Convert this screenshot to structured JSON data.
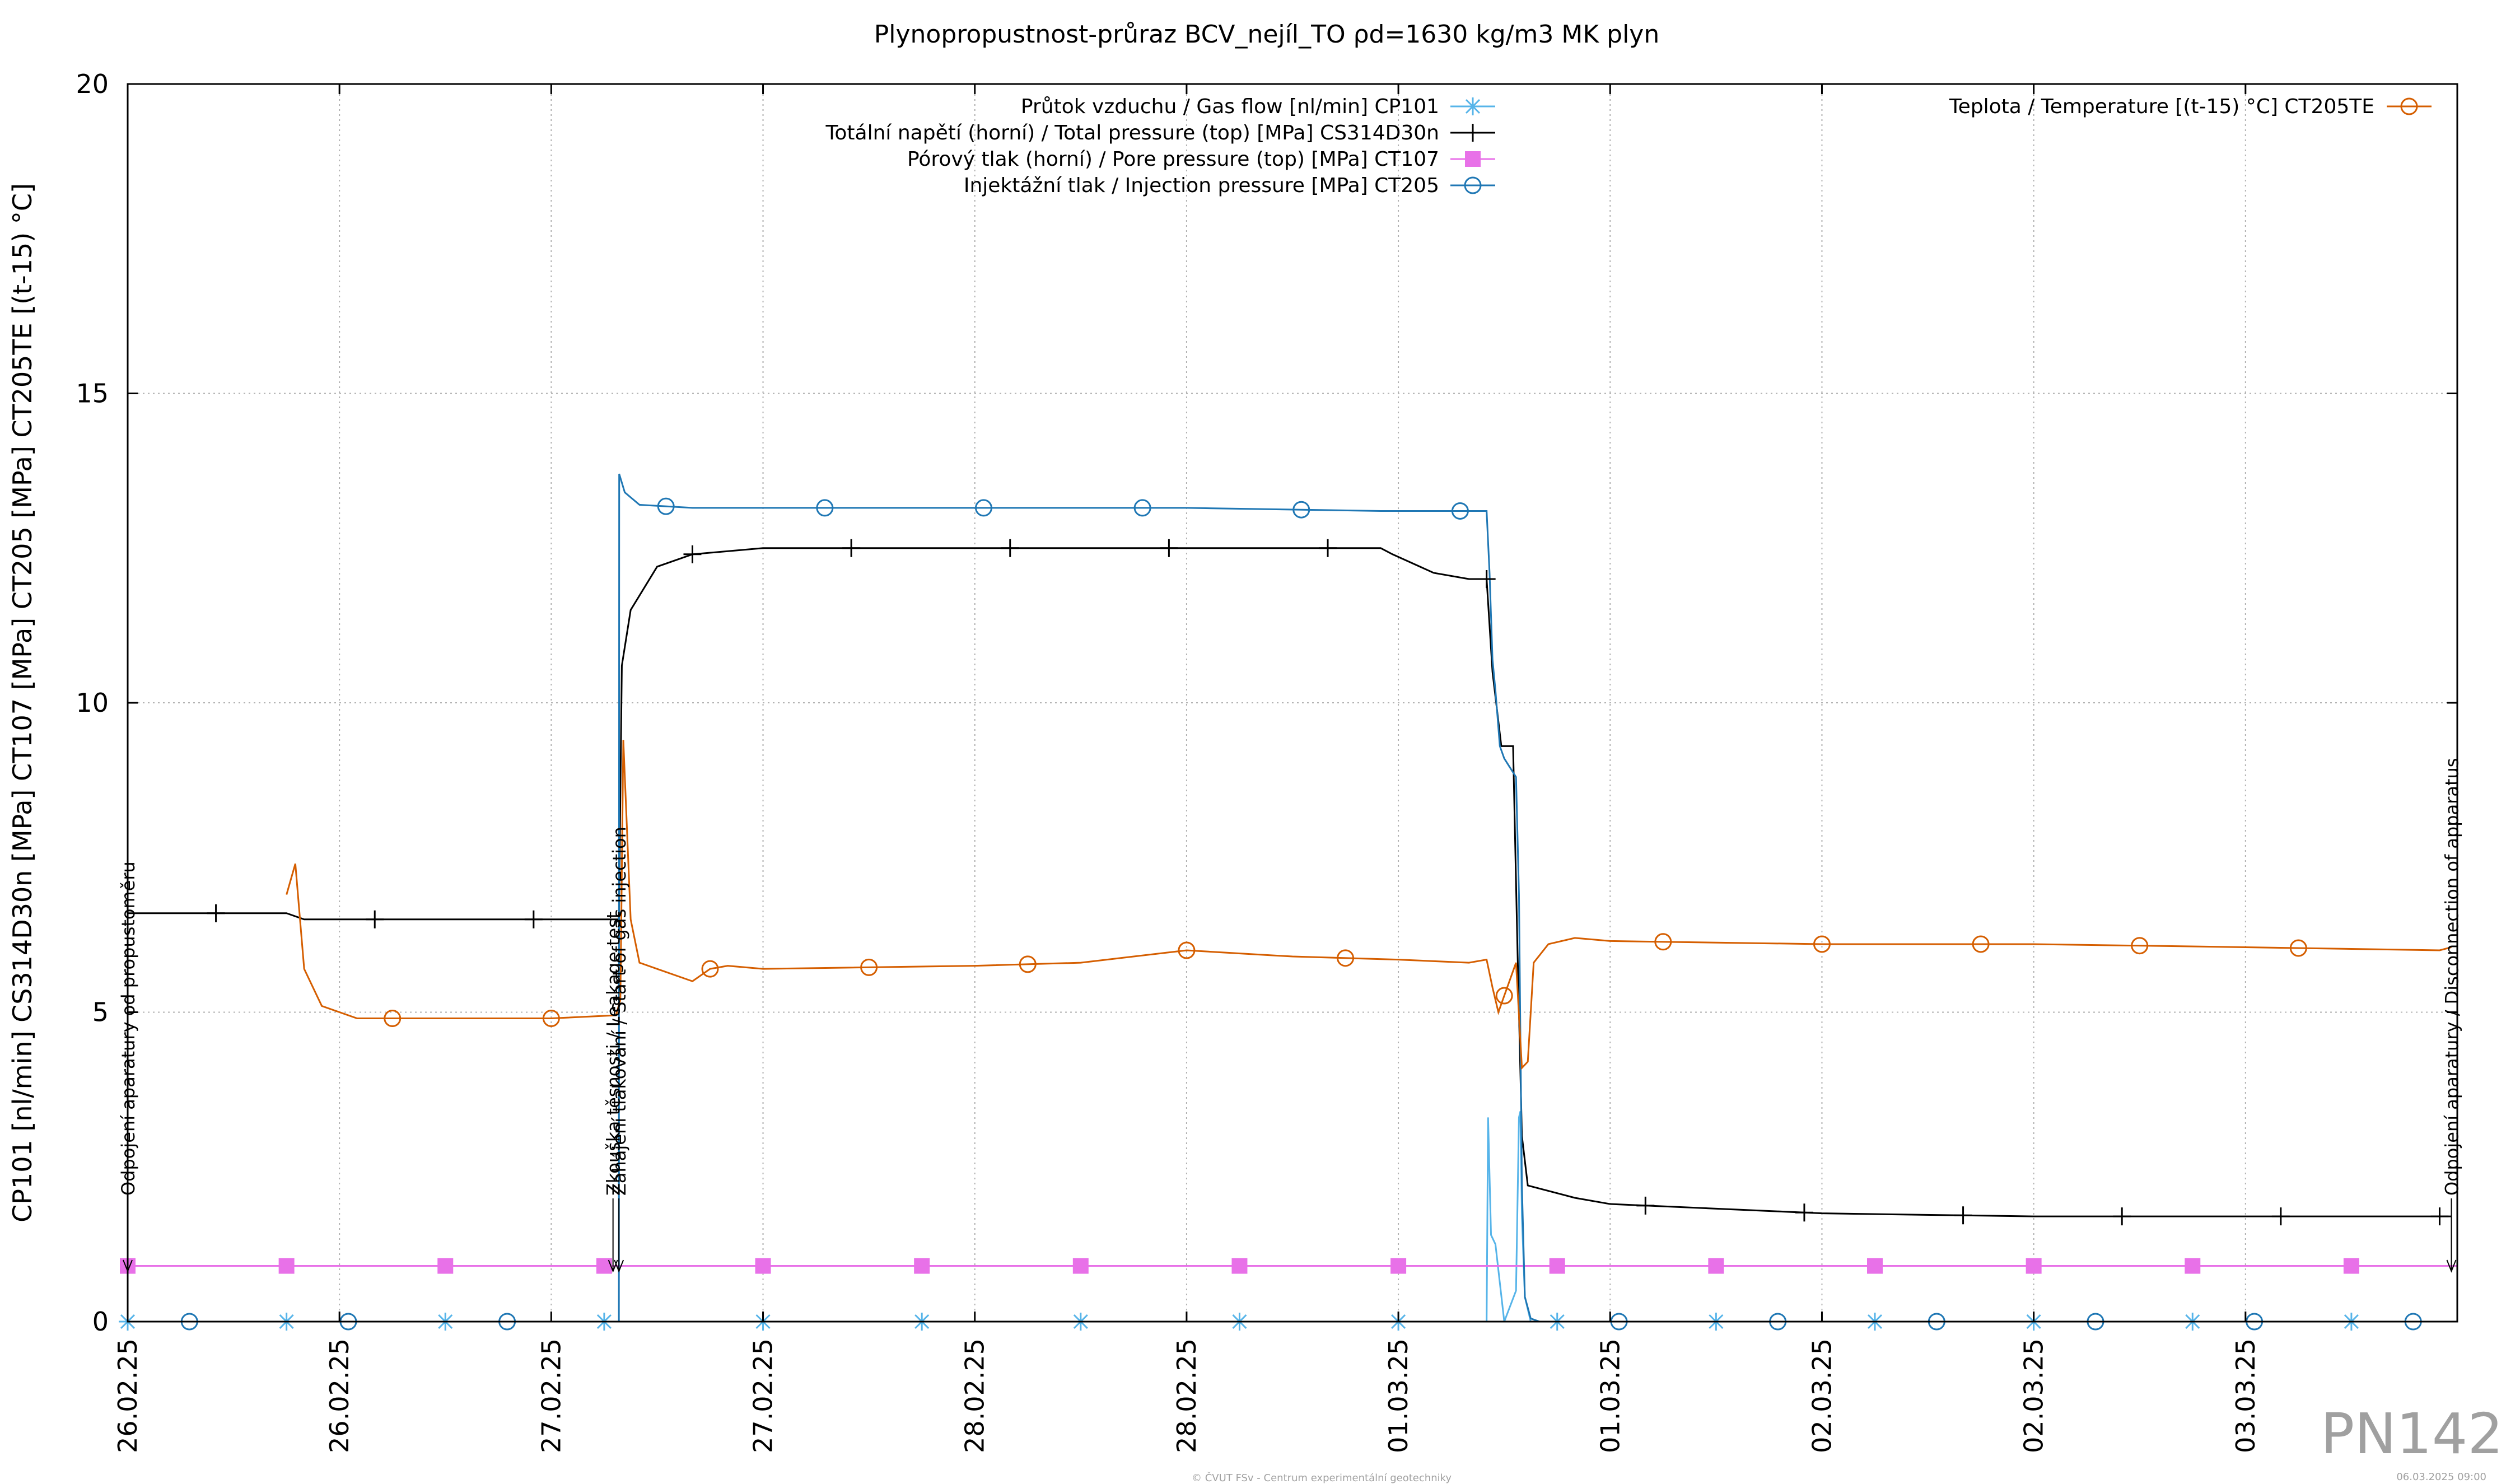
{
  "chart_data": {
    "type": "line",
    "title": "Plynopropustnost-průraz BCV_nejíl_TO ρd=1630 kg/m3 MK plyn",
    "ylabel": "CP101 [nl/min] CS314D30n [MPa] CT107 [MPa] CT205 [MPa] CT205TE [(t-15) °C]",
    "xlabel": "",
    "xlim": [
      "2025-02-26 00:00",
      "2025-03-03 12:00"
    ],
    "ylim": [
      0,
      20
    ],
    "grid": true,
    "legend_position": "top",
    "x_tick_labels": [
      "26.02.25",
      "26.02.25",
      "27.02.25",
      "27.02.25",
      "28.02.25",
      "28.02.25",
      "01.03.25",
      "01.03.25",
      "02.03.25",
      "02.03.25",
      "03.03.25"
    ],
    "x_ticks": [
      "2025-02-26 00:00",
      "2025-02-26 12:00",
      "2025-02-27 00:00",
      "2025-02-27 12:00",
      "2025-02-28 00:00",
      "2025-02-28 12:00",
      "2025-03-01 00:00",
      "2025-03-01 12:00",
      "2025-03-02 00:00",
      "2025-03-02 12:00",
      "2025-03-03 00:00"
    ],
    "y_ticks": [
      0,
      5,
      10,
      15,
      20
    ],
    "series": [
      {
        "name": "Průtok vzduchu / Gas flow [nl/min] CP101",
        "color": "#56b4e9",
        "marker": "asterisk",
        "x": [
          "2025-02-26 00:00",
          "2025-02-27 03:50",
          "2025-02-27 03:51",
          "2025-03-01 05:00",
          "2025-03-01 05:05",
          "2025-03-01 05:15",
          "2025-03-01 05:30",
          "2025-03-01 06:00",
          "2025-03-01 06:40",
          "2025-03-01 06:50",
          "2025-03-01 06:55",
          "2025-03-01 07:00",
          "2025-03-01 07:10",
          "2025-03-01 07:30",
          "2025-03-03 12:00"
        ],
        "y": [
          0,
          0,
          0,
          0,
          3.3,
          1.4,
          1.25,
          0,
          0.5,
          3.3,
          3.4,
          1.7,
          0.4,
          0,
          0
        ]
      },
      {
        "name": "Totální napětí (horní) / Total pressure (top) [MPa] CS314D30n",
        "color": "#000000",
        "marker": "plus",
        "x": [
          "2025-02-26 00:00",
          "2025-02-26 09:00",
          "2025-02-26 10:00",
          "2025-02-26 18:00",
          "2025-02-27 00:00",
          "2025-02-27 03:50",
          "2025-02-27 04:00",
          "2025-02-27 04:30",
          "2025-02-27 06:00",
          "2025-02-27 08:00",
          "2025-02-27 12:00",
          "2025-02-28 00:00",
          "2025-02-28 12:00",
          "2025-02-28 23:00",
          "2025-02-28 23:40",
          "2025-03-01 02:00",
          "2025-03-01 04:00",
          "2025-03-01 05:00",
          "2025-03-01 05:20",
          "2025-03-01 05:50",
          "2025-03-01 06:30",
          "2025-03-01 06:45",
          "2025-03-01 07:00",
          "2025-03-01 07:20",
          "2025-03-01 10:00",
          "2025-03-01 12:00",
          "2025-03-02 00:00",
          "2025-03-02 12:00",
          "2025-03-03 00:00",
          "2025-03-03 10:00",
          "2025-03-03 11:40"
        ],
        "y": [
          6.6,
          6.6,
          6.5,
          6.5,
          6.5,
          6.5,
          10.6,
          11.5,
          12.2,
          12.4,
          12.5,
          12.5,
          12.5,
          12.5,
          12.4,
          12.1,
          12.0,
          12.0,
          10.5,
          9.3,
          9.3,
          6.0,
          3.0,
          2.2,
          2.0,
          1.9,
          1.75,
          1.7,
          1.7,
          1.7,
          1.7
        ]
      },
      {
        "name": "Pórový tlak (horní) / Pore pressure (top) [MPa] CT107",
        "color": "#e871e8",
        "marker": "square",
        "x": [
          "2025-02-26 00:00",
          "2025-03-03 12:00"
        ],
        "y": [
          0.9,
          0.9
        ]
      },
      {
        "name": "Injektážní tlak / Injection pressure [MPa] CT205",
        "color": "#1f77b4",
        "marker": "circle",
        "x": [
          "2025-02-26 00:00",
          "2025-02-27 03:50",
          "2025-02-27 03:51",
          "2025-02-27 04:10",
          "2025-02-27 05:00",
          "2025-02-27 08:00",
          "2025-02-27 12:00",
          "2025-02-28 00:00",
          "2025-02-28 12:00",
          "2025-02-28 23:00",
          "2025-03-01 04:00",
          "2025-03-01 05:00",
          "2025-03-01 05:10",
          "2025-03-01 05:20",
          "2025-03-01 05:30",
          "2025-03-01 05:45",
          "2025-03-01 06:00",
          "2025-03-01 06:40",
          "2025-03-01 06:50",
          "2025-03-01 07:00",
          "2025-03-01 07:10",
          "2025-03-01 07:30",
          "2025-03-01 08:00",
          "2025-03-03 12:00"
        ],
        "y": [
          0,
          0,
          13.7,
          13.4,
          13.2,
          13.15,
          13.15,
          13.15,
          13.15,
          13.1,
          13.1,
          13.1,
          12.1,
          10.7,
          10.2,
          9.3,
          9.1,
          8.8,
          6.9,
          2.2,
          0.4,
          0.05,
          0,
          0
        ]
      },
      {
        "name": "Teplota / Temperature [(t-15) °C] CT205TE",
        "color": "#d55e00",
        "marker": "circle",
        "x": [
          "2025-02-26 09:00",
          "2025-02-26 09:30",
          "2025-02-26 10:00",
          "2025-02-26 11:00",
          "2025-02-26 13:00",
          "2025-02-26 18:00",
          "2025-02-27 00:00",
          "2025-02-27 03:40",
          "2025-02-27 03:55",
          "2025-02-27 04:05",
          "2025-02-27 04:30",
          "2025-02-27 05:00",
          "2025-02-27 06:00",
          "2025-02-27 08:00",
          "2025-02-27 09:00",
          "2025-02-27 10:00",
          "2025-02-27 12:00",
          "2025-02-28 00:00",
          "2025-02-28 06:00",
          "2025-02-28 12:00",
          "2025-02-28 18:00",
          "2025-03-01 00:00",
          "2025-03-01 04:00",
          "2025-03-01 05:00",
          "2025-03-01 05:20",
          "2025-03-01 05:40",
          "2025-03-01 06:40",
          "2025-03-01 07:00",
          "2025-03-01 07:20",
          "2025-03-01 07:40",
          "2025-03-01 08:30",
          "2025-03-01 10:00",
          "2025-03-01 12:00",
          "2025-03-02 00:00",
          "2025-03-02 12:00",
          "2025-03-03 00:00",
          "2025-03-03 11:00",
          "2025-03-03 11:40"
        ],
        "y": [
          6.9,
          7.4,
          5.7,
          5.1,
          4.9,
          4.9,
          4.9,
          4.95,
          5.2,
          9.4,
          6.5,
          5.8,
          5.7,
          5.5,
          5.7,
          5.75,
          5.7,
          5.75,
          5.8,
          6.0,
          5.9,
          5.85,
          5.8,
          5.85,
          5.4,
          5.0,
          5.8,
          4.1,
          4.2,
          5.8,
          6.1,
          6.2,
          6.15,
          6.1,
          6.1,
          6.05,
          6.0,
          6.05
        ]
      }
    ],
    "annotations": [
      {
        "text": "Odpojení aparatury od propustoměru",
        "x": "2025-02-26 00:00"
      },
      {
        "text": "Zkouška těsnosti / Leakage test",
        "x": "2025-02-27 03:30"
      },
      {
        "text": "Zahájení tlakování / Start of gas injection",
        "x": "2025-02-27 03:50"
      },
      {
        "text": "Odpojení aparatury / Disconnection of apparatus",
        "x": "2025-03-03 11:40"
      }
    ]
  },
  "footer": {
    "credit": "© ČVUT FSv - Centrum experimentální geotechniky",
    "timestamp": "06.03.2025 09:00",
    "id_label": "PN142"
  }
}
